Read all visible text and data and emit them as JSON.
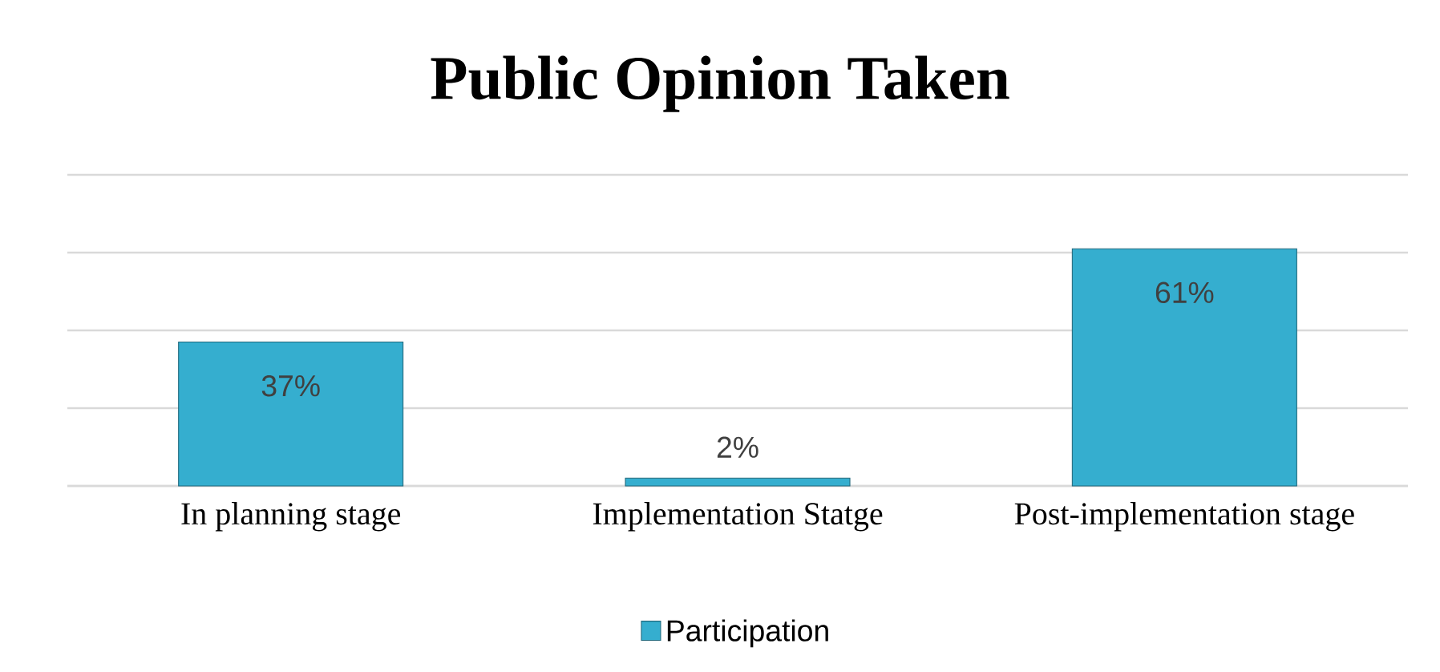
{
  "chart_data": {
    "type": "bar",
    "title": "Public Opinion Taken",
    "categories": [
      "In planning stage",
      "Implementation Statge",
      "Post-implementation stage"
    ],
    "series": [
      {
        "name": "Participation",
        "color": "#35aecf",
        "values": [
          37,
          2,
          61
        ],
        "value_labels": [
          "37%",
          "2%",
          "61%"
        ]
      }
    ],
    "ylim": [
      0,
      80
    ],
    "yticks": [
      {
        "value": 0,
        "label": null
      },
      {
        "value": 20,
        "label": null
      },
      {
        "value": 40,
        "label": null
      },
      {
        "value": 60,
        "label": null
      },
      {
        "value": 80,
        "label": null
      }
    ],
    "grid": "y",
    "tick_labels": "x",
    "legend": "bottom"
  }
}
